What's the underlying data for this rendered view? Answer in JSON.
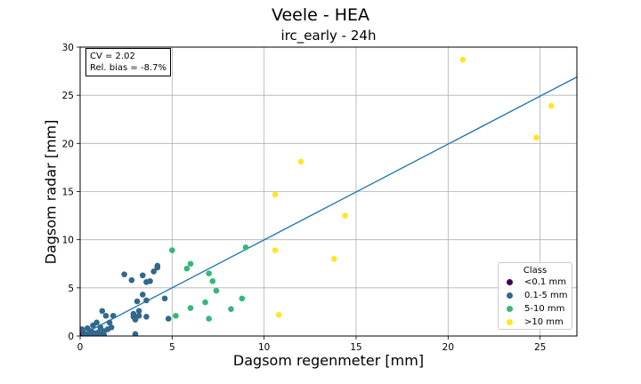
{
  "chart_data": {
    "type": "scatter",
    "suptitle": "Veele - HEA",
    "title": "irc_early - 24h",
    "xlabel": "Dagsom regenmeter [mm]",
    "ylabel": "Dagsom radar [mm]",
    "xlim": [
      0,
      27
    ],
    "ylim": [
      0,
      30
    ],
    "xticks": [
      0,
      5,
      10,
      15,
      20,
      25
    ],
    "yticks": [
      0,
      5,
      10,
      15,
      20,
      25,
      30
    ],
    "grid": true,
    "annotation": [
      "CV = 2.02",
      "Rel. bias = -8.7%"
    ],
    "legend": {
      "title": "Class",
      "placement": "lower right"
    },
    "fit_line": {
      "slope": 0.995,
      "intercept": 0.03,
      "color": "#1f77b4"
    },
    "series": [
      {
        "name": "<0.1 mm",
        "color": "#440154",
        "points": [
          [
            0.0,
            0.0
          ],
          [
            0.0,
            0.1
          ],
          [
            0.05,
            0.0
          ],
          [
            0.0,
            0.3
          ],
          [
            0.1,
            0.6
          ],
          [
            0.0,
            0.2
          ]
        ]
      },
      {
        "name": "0.1-5 mm",
        "color": "#31688e",
        "points": [
          [
            0.1,
            0.7
          ],
          [
            0.2,
            0.3
          ],
          [
            0.3,
            0.1
          ],
          [
            0.4,
            0.8
          ],
          [
            0.5,
            0.2
          ],
          [
            0.6,
            0.5
          ],
          [
            0.7,
            1.1
          ],
          [
            0.8,
            0.3
          ],
          [
            0.9,
            1.4
          ],
          [
            1.0,
            0.4
          ],
          [
            1.1,
            0.9
          ],
          [
            1.2,
            0.2
          ],
          [
            1.2,
            2.6
          ],
          [
            1.3,
            0.1
          ],
          [
            1.4,
            2.1
          ],
          [
            1.5,
            0.7
          ],
          [
            1.6,
            1.4
          ],
          [
            1.7,
            0.9
          ],
          [
            1.8,
            2.1
          ],
          [
            0.3,
            0.0
          ],
          [
            0.6,
            0.0
          ],
          [
            0.9,
            0.1
          ],
          [
            1.3,
            0.5
          ],
          [
            2.4,
            6.4
          ],
          [
            2.8,
            5.8
          ],
          [
            2.9,
            2.3
          ],
          [
            2.9,
            2.0
          ],
          [
            3.0,
            0.2
          ],
          [
            3.0,
            1.7
          ],
          [
            3.1,
            3.6
          ],
          [
            3.2,
            2.1
          ],
          [
            3.2,
            2.6
          ],
          [
            3.4,
            6.3
          ],
          [
            3.4,
            4.3
          ],
          [
            3.6,
            2.0
          ],
          [
            3.6,
            3.7
          ],
          [
            3.6,
            5.6
          ],
          [
            3.8,
            5.7
          ],
          [
            4.0,
            6.7
          ],
          [
            4.2,
            7.1
          ],
          [
            4.2,
            7.3
          ],
          [
            4.6,
            3.9
          ],
          [
            4.8,
            1.8
          ]
        ]
      },
      {
        "name": "5-10 mm",
        "color": "#35b779",
        "points": [
          [
            5.0,
            8.9
          ],
          [
            5.2,
            2.1
          ],
          [
            5.8,
            7.0
          ],
          [
            6.0,
            2.9
          ],
          [
            6.0,
            7.5
          ],
          [
            6.8,
            3.5
          ],
          [
            7.0,
            1.8
          ],
          [
            7.0,
            6.5
          ],
          [
            7.2,
            5.7
          ],
          [
            7.4,
            4.7
          ],
          [
            8.2,
            2.8
          ],
          [
            8.8,
            3.9
          ],
          [
            9.0,
            9.2
          ]
        ]
      },
      {
        "name": ">10 mm",
        "color": "#fde725",
        "points": [
          [
            10.6,
            14.7
          ],
          [
            10.6,
            8.9
          ],
          [
            10.8,
            2.2
          ],
          [
            12.0,
            18.1
          ],
          [
            13.8,
            8.0
          ],
          [
            14.4,
            12.5
          ],
          [
            20.8,
            28.7
          ],
          [
            24.8,
            20.6
          ],
          [
            25.6,
            23.9
          ]
        ]
      }
    ]
  }
}
